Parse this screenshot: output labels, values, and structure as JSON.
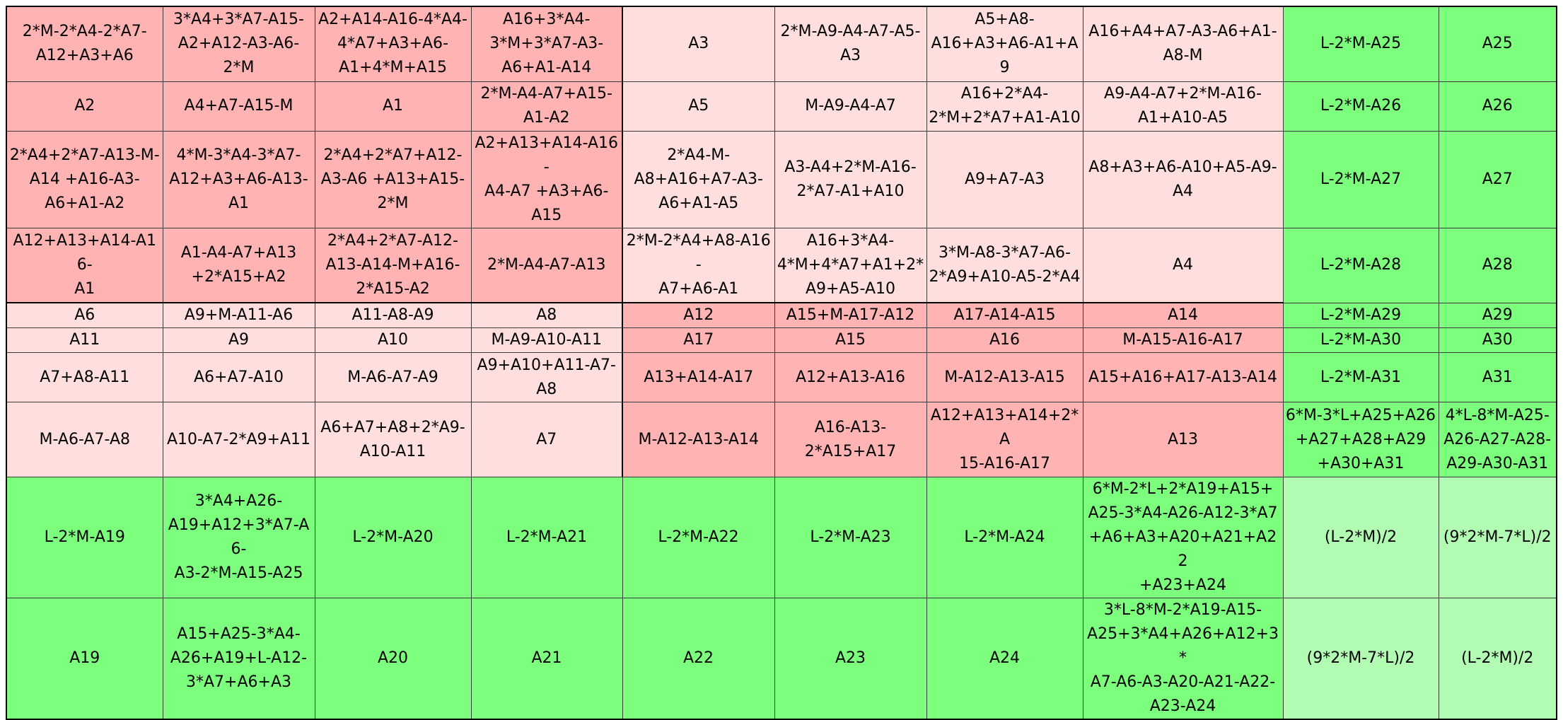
{
  "colors": {
    "dark_pink": "#ffb3b3",
    "light_pink": "#ffdede",
    "green": "#7cff7c",
    "pale_green": "#b2fbb2"
  },
  "rows": [
    [
      "2*M-2*A4-2*A7-\nA12+A3+A6",
      "3*A4+3*A7-A15-\nA2+A12-A3-A6-\n2*M",
      "A2+A14-A16-4*A4-\n4*A7+A3+A6-\nA1+4*M+A15",
      "A16+3*A4-\n3*M+3*A7-A3-\nA6+A1-A14",
      "A3",
      "2*M-A9-A4-A7-A5-\nA3",
      "A5+A8-\nA16+A3+A6-A1+A9",
      "A16+A4+A7-A3-A6+A1-\nA8-M",
      "L-2*M-A25",
      "A25"
    ],
    [
      "A2",
      "A4+A7-A15-M",
      "A1",
      "2*M-A4-A7+A15-\nA1-A2",
      "A5",
      "M-A9-A4-A7",
      "A16+2*A4-\n2*M+2*A7+A1-A10",
      "A9-A4-A7+2*M-A16-\nA1+A10-A5",
      "L-2*M-A26",
      "A26"
    ],
    [
      "2*A4+2*A7-A13-M-\nA14 +A16-A3-\nA6+A1-A2",
      "4*M-3*A4-3*A7-\nA12+A3+A6-A13-\nA1",
      "2*A4+2*A7+A12-\nA3-A6 +A13+A15-\n2*M",
      "A2+A13+A14-A16-\nA4-A7 +A3+A6-\nA15",
      "2*A4-M-\nA8+A16+A7-A3-\nA6+A1-A5",
      "A3-A4+2*M-A16-\n2*A7-A1+A10",
      "A9+A7-A3",
      "A8+A3+A6-A10+A5-A9-\nA4",
      "L-2*M-A27",
      "A27"
    ],
    [
      "A12+A13+A14-A16-\nA1",
      "A1-A4-A7+A13\n+2*A15+A2",
      "2*A4+2*A7-A12-\nA13-A14-M+A16-\n2*A15-A2",
      "2*M-A4-A7-A13",
      "2*M-2*A4+A8-A16-\nA7+A6-A1",
      "A16+3*A4-\n4*M+4*A7+A1+2*\nA9+A5-A10",
      "3*M-A8-3*A7-A6-\n2*A9+A10-A5-2*A4",
      "A4",
      "L-2*M-A28",
      "A28"
    ],
    [
      "A6",
      "A9+M-A11-A6",
      "A11-A8-A9",
      "A8",
      "A12",
      "A15+M-A17-A12",
      "A17-A14-A15",
      "A14",
      "L-2*M-A29",
      "A29"
    ],
    [
      "A11",
      "A9",
      "A10",
      "M-A9-A10-A11",
      "A17",
      "A15",
      "A16",
      "M-A15-A16-A17",
      "L-2*M-A30",
      "A30"
    ],
    [
      "A7+A8-A11",
      "A6+A7-A10",
      "M-A6-A7-A9",
      "A9+A10+A11-A7-\nA8",
      "A13+A14-A17",
      "A12+A13-A16",
      "M-A12-A13-A15",
      "A15+A16+A17-A13-A14",
      "L-2*M-A31",
      "A31"
    ],
    [
      "M-A6-A7-A8",
      "A10-A7-2*A9+A11",
      "A6+A7+A8+2*A9-\nA10-A11",
      "A7",
      "M-A12-A13-A14",
      "A16-A13-\n2*A15+A17",
      "A12+A13+A14+2*A\n15-A16-A17",
      "A13",
      "6*M-3*L+A25+A26\n+A27+A28+A29\n+A30+A31",
      "4*L-8*M-A25-\nA26-A27-A28-\nA29-A30-A31"
    ],
    [
      "L-2*M-A19",
      "3*A4+A26-\nA19+A12+3*A7-A6-\nA3-2*M-A15-A25",
      "L-2*M-A20",
      "L-2*M-A21",
      "L-2*M-A22",
      "L-2*M-A23",
      "L-2*M-A24",
      "6*M-2*L+2*A19+A15+\nA25-3*A4-A26-A12-3*A7\n+A6+A3+A20+A21+A22\n+A23+A24",
      "(L-2*M)/2",
      "(9*2*M-7*L)/2"
    ],
    [
      "A19",
      "A15+A25-3*A4-\nA26+A19+L-A12-\n3*A7+A6+A3",
      "A20",
      "A21",
      "A22",
      "A23",
      "A24",
      "3*L-8*M-2*A19-A15-\nA25+3*A4+A26+A12+3*\nA7-A6-A3-A20-A21-A22-\nA23-A24",
      "(9*2*M-7*L)/2",
      "(L-2*M)/2"
    ]
  ]
}
